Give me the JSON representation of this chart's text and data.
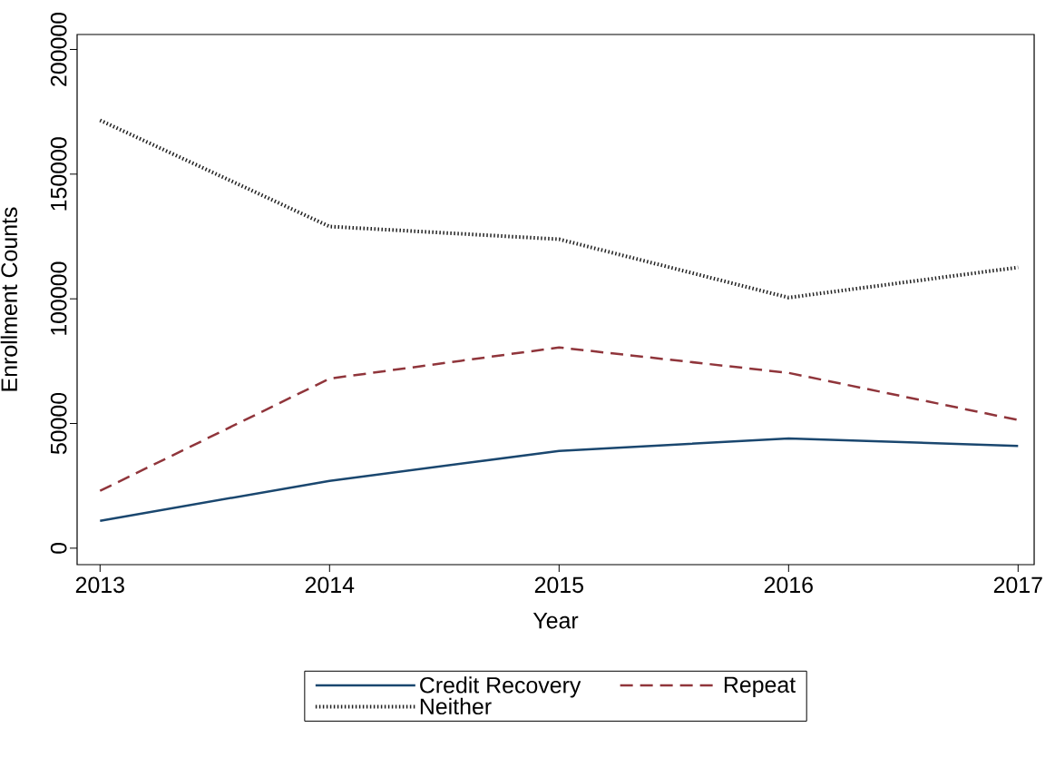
{
  "chart_data": {
    "type": "line",
    "xlabel": "Year",
    "ylabel": "Enrollment Counts",
    "x": [
      2013,
      2014,
      2015,
      2016,
      2017
    ],
    "xlim": [
      2012.9,
      2017.07
    ],
    "ylim": [
      -6600,
      206000
    ],
    "xticks": [
      2013,
      2014,
      2015,
      2016,
      2017
    ],
    "yticks": [
      0,
      50000,
      100000,
      150000,
      200000
    ],
    "grid": false,
    "legend": "bottom",
    "series": [
      {
        "name": "Credit Recovery",
        "color": "#1a476f",
        "line_style": "solid",
        "values": [
          11000,
          27000,
          39000,
          44000,
          41000
        ]
      },
      {
        "name": "Repeat",
        "color": "#90353b",
        "line_style": "dashed",
        "values": [
          23000,
          68000,
          80500,
          70300,
          51400
        ]
      },
      {
        "name": "Neither",
        "color": "#222222",
        "line_style": "dotted",
        "values": [
          171600,
          129000,
          123900,
          100500,
          112600
        ]
      }
    ]
  }
}
